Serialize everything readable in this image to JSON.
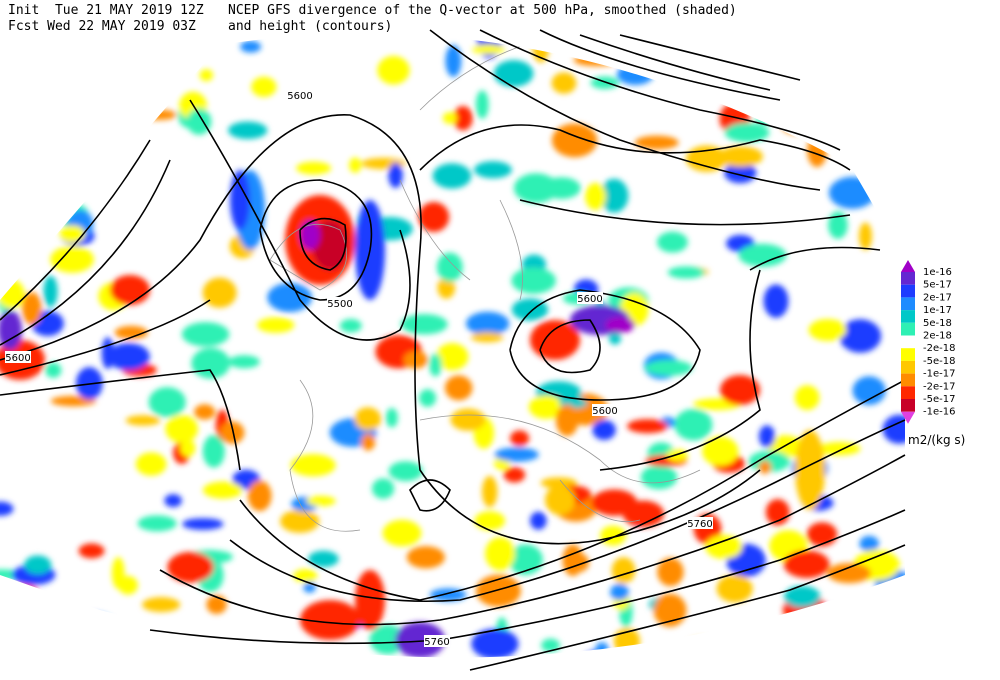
{
  "header": {
    "init": "Init  Tue 21 MAY 2019 12Z",
    "forecast": "Fcst Wed 22 MAY 2019 03Z",
    "title_line1": "NCEP GFS divergence of the Q-vector at 500 hPa, smoothed (shaded)",
    "title_line2": "and height (contours)"
  },
  "contour_labels": [
    "5600",
    "5500",
    "5600",
    "5600",
    "5600",
    "5760",
    "5760"
  ],
  "colorbar": {
    "colors": [
      "#a000c8",
      "#6428d2",
      "#1e3cff",
      "#1e8cff",
      "#00c8c8",
      "#2ef0b4",
      "#ffffff",
      "#ffff00",
      "#ffc800",
      "#ff8c00",
      "#ff2800",
      "#c80028",
      "#e040e0"
    ],
    "labels": [
      "1e-16",
      "5e-17",
      "2e-17",
      "1e-17",
      "5e-18",
      "2e-18",
      "-2e-18",
      "-5e-18",
      "-1e-17",
      "-2e-17",
      "-5e-17",
      "-1e-16"
    ],
    "unit": "m2/(kg s)"
  }
}
